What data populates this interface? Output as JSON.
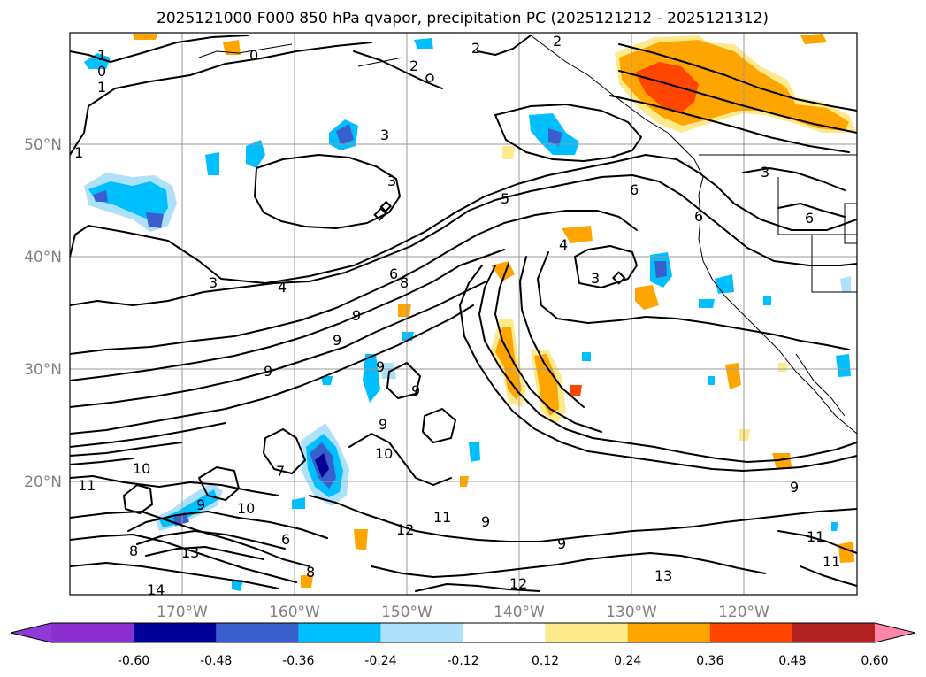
{
  "title": "2025121000 F000 850 hPa qvapor, precipitation PC (2025121212 - 2025121312)",
  "lon_labels": [
    "170°W",
    "160°W",
    "150°W",
    "140°W",
    "130°W",
    "120°W"
  ],
  "lat_labels": [
    "50°N",
    "40°N",
    "30°N",
    "20°N"
  ],
  "colorbar": {
    "ticks": [
      "-0.60",
      "-0.48",
      "-0.36",
      "-0.24",
      "-0.12",
      "0.12",
      "0.24",
      "0.36",
      "0.48",
      "0.60"
    ],
    "colors": [
      "#8f3ad6",
      "#8b2fd0",
      "#000096",
      "#3a5fcd",
      "#00bfff",
      "#ade1fa",
      "#ffffff",
      "#ffea8b",
      "#ffa500",
      "#ff4500",
      "#b22222",
      "#ff86a9"
    ]
  },
  "colors": {
    "contour": "#000000",
    "grid": "#9a9a9a",
    "tick_label": "#808080"
  },
  "contour_labels": [
    "1",
    "0",
    "1",
    "1",
    "2",
    "2",
    "2",
    "0",
    "3",
    "3",
    "3",
    "5",
    "6",
    "6",
    "6",
    "4",
    "3",
    "4",
    "6",
    "8",
    "9",
    "9",
    "9",
    "9",
    "9",
    "9",
    "10",
    "10",
    "11",
    "10",
    "12",
    "12",
    "13",
    "11",
    "11",
    "11",
    "14",
    "13",
    "9",
    "8",
    "7",
    "8",
    "9",
    "9",
    "3",
    "6",
    "9"
  ]
}
